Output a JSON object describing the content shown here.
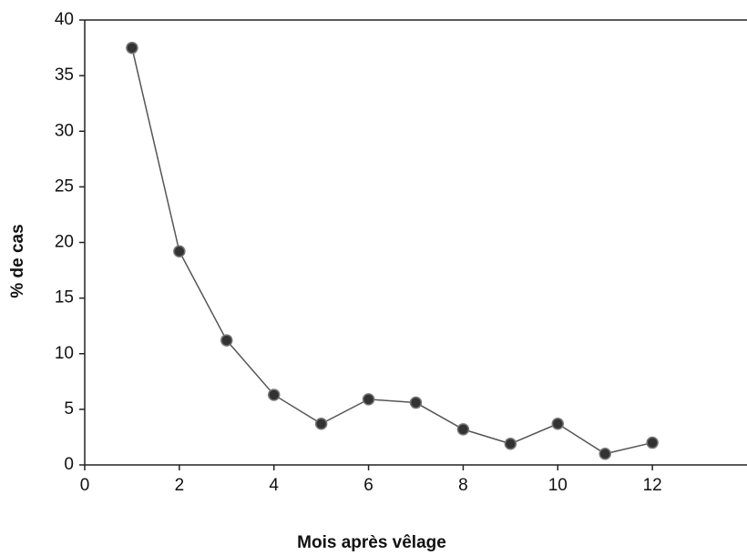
{
  "chart_data": {
    "type": "line",
    "x_label": "Mois après vêlage",
    "y_label": "% de cas",
    "x": [
      1,
      2,
      3,
      4,
      5,
      6,
      7,
      8,
      9,
      10,
      11,
      12
    ],
    "series": [
      {
        "color": "#333333",
        "values": [
          37.5,
          19.2,
          11.2,
          6.3,
          3.7,
          5.9,
          5.6,
          3.2,
          1.9,
          3.7,
          1.0,
          2.0
        ]
      }
    ],
    "xlim": [
      0,
      14
    ],
    "xticks": [
      0,
      2,
      4,
      6,
      8,
      10,
      12
    ],
    "ylim": [
      0,
      40
    ],
    "yticks": [
      0,
      5,
      10,
      15,
      20,
      25,
      30,
      35,
      40
    ]
  }
}
